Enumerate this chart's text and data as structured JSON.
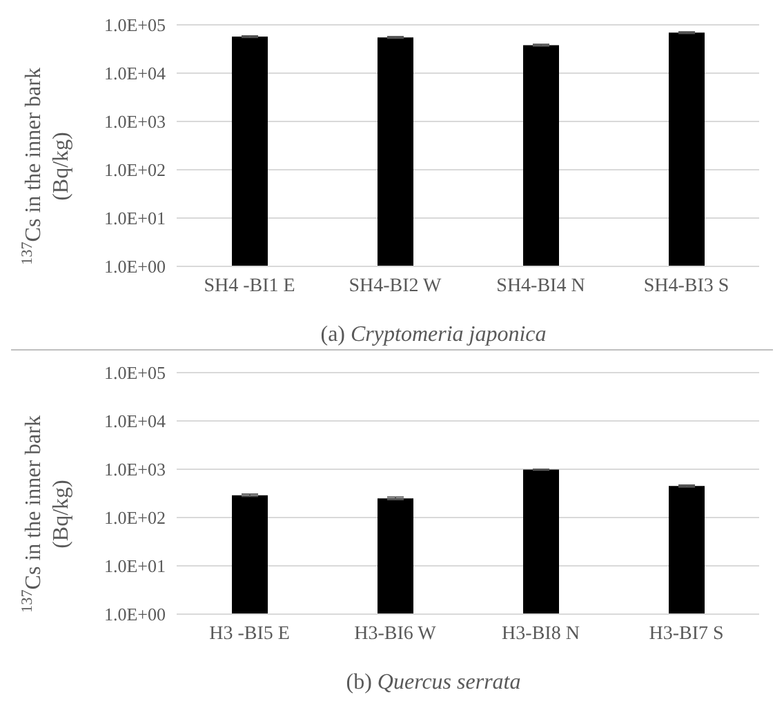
{
  "chart_data": [
    {
      "type": "bar",
      "xlabel": "(a) Cryptomeria japonica",
      "ylabel": "$^{137}$Cs in the inner bark (Bq/kg)",
      "categories": [
        "SH4 -BI1 E",
        "SH4-BI2 W",
        "SH4-BI4 N",
        "SH4-BI3 S"
      ],
      "values": [
        57000,
        55000,
        38000,
        69000
      ],
      "errors": [
        2000,
        2000,
        1500,
        2500
      ],
      "color": "#000000",
      "log": true,
      "ylim": [
        1,
        100000
      ],
      "yticks": [
        {
          "value": 1,
          "label": "1.0E+00"
        },
        {
          "value": 10,
          "label": "1.0E+01"
        },
        {
          "value": 100,
          "label": "1.0E+02"
        },
        {
          "value": 1000,
          "label": "1.0E+03"
        },
        {
          "value": 10000,
          "label": "1.0E+04"
        },
        {
          "value": 100000,
          "label": "1.0E+05"
        }
      ],
      "grid": "y"
    },
    {
      "type": "bar",
      "xlabel": "(b) Quercus serrata",
      "ylabel": "$^{137}$Cs in the inner bark (Bq/kg)",
      "categories": [
        "H3 -BI5 E",
        "H3-BI6 W",
        "H3-BI8 N",
        "H3-BI7 S"
      ],
      "values": [
        290,
        250,
        980,
        450
      ],
      "errors": [
        15,
        15,
        20,
        20
      ],
      "color": "#000000",
      "log": true,
      "ylim": [
        1,
        100000
      ],
      "yticks": [
        {
          "value": 1,
          "label": "1.0E+00"
        },
        {
          "value": 10,
          "label": "1.0E+01"
        },
        {
          "value": 100,
          "label": "1.0E+02"
        },
        {
          "value": 1000,
          "label": "1.0E+03"
        },
        {
          "value": 10000,
          "label": "1.0E+04"
        },
        {
          "value": 100000,
          "label": "1.0E+05"
        }
      ],
      "grid": "y"
    }
  ]
}
